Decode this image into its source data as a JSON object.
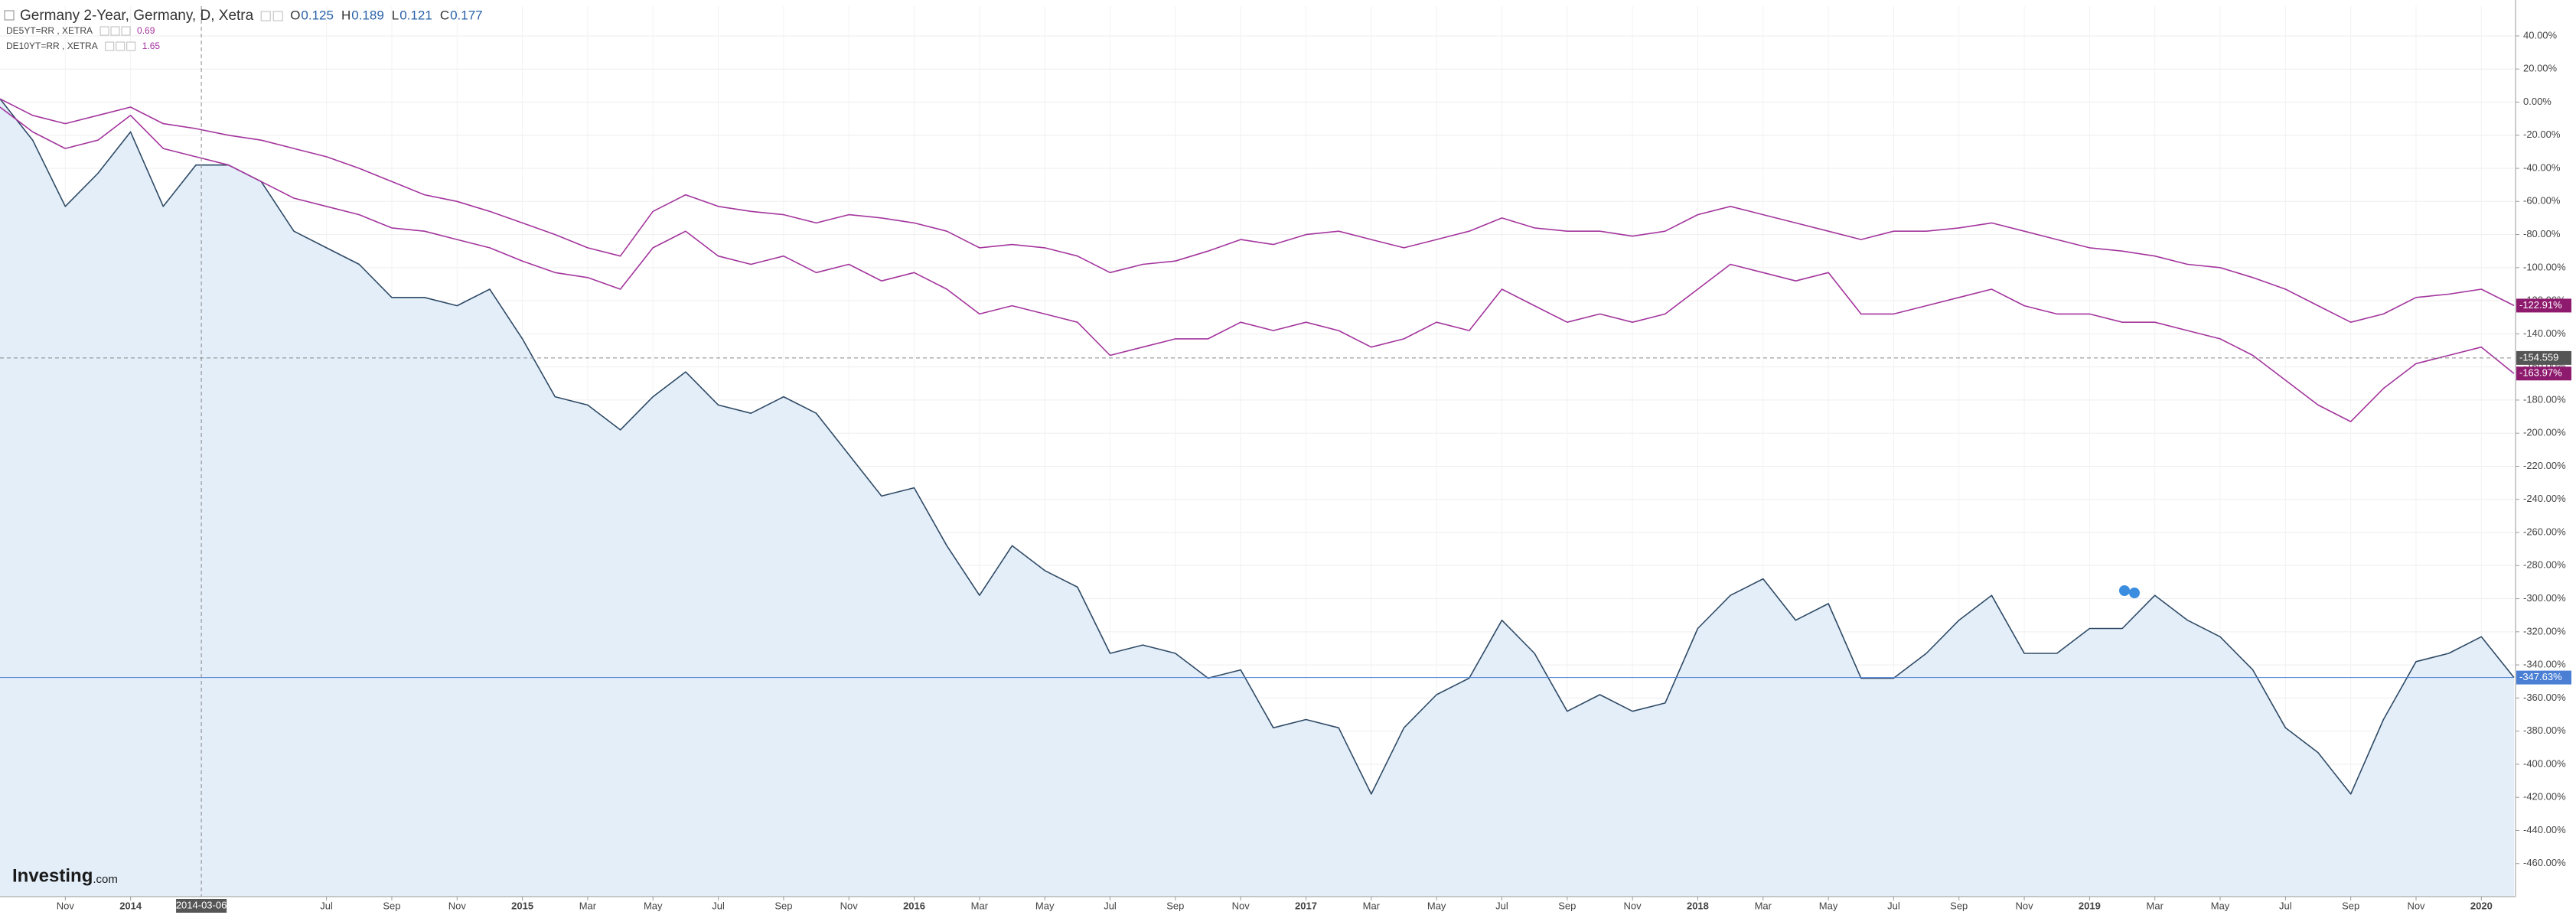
{
  "chart_data": {
    "type": "line",
    "xlim": [
      "2013-09",
      "2020-02"
    ],
    "ylim": [
      -480,
      58
    ],
    "grid": true,
    "x": [
      "2013-09",
      "2013-10",
      "2013-11",
      "2013-12",
      "2014-01",
      "2014-02",
      "2014-03",
      "2014-04",
      "2014-05",
      "2014-06",
      "2014-07",
      "2014-08",
      "2014-09",
      "2014-10",
      "2014-11",
      "2014-12",
      "2015-01",
      "2015-02",
      "2015-03",
      "2015-04",
      "2015-05",
      "2015-06",
      "2015-07",
      "2015-08",
      "2015-09",
      "2015-10",
      "2015-11",
      "2015-12",
      "2016-01",
      "2016-02",
      "2016-03",
      "2016-04",
      "2016-05",
      "2016-06",
      "2016-07",
      "2016-08",
      "2016-09",
      "2016-10",
      "2016-11",
      "2016-12",
      "2017-01",
      "2017-02",
      "2017-03",
      "2017-04",
      "2017-05",
      "2017-06",
      "2017-07",
      "2017-08",
      "2017-09",
      "2017-10",
      "2017-11",
      "2017-12",
      "2018-01",
      "2018-02",
      "2018-03",
      "2018-04",
      "2018-05",
      "2018-06",
      "2018-07",
      "2018-08",
      "2018-09",
      "2018-10",
      "2018-11",
      "2018-12",
      "2019-01",
      "2019-02",
      "2019-03",
      "2019-04",
      "2019-05",
      "2019-06",
      "2019-07",
      "2019-08",
      "2019-09",
      "2019-10",
      "2019-11",
      "2019-12",
      "2020-01",
      "2020-02"
    ],
    "series": [
      {
        "name": "Germany 2-Year, Germany, D, Xetra",
        "color": "#2f4a66",
        "fill": "#e3eef9",
        "last_label": "-347.63%",
        "tag_color": "#4a7fd4",
        "values": [
          2,
          -23,
          -63,
          -43,
          -18,
          -63,
          -38,
          -38,
          -48,
          -78,
          -88,
          -98,
          -118,
          -118,
          -123,
          -113,
          -143,
          -178,
          -183,
          -198,
          -178,
          -163,
          -183,
          -188,
          -178,
          -188,
          -213,
          -238,
          -233,
          -268,
          -298,
          -268,
          -283,
          -293,
          -333,
          -328,
          -333,
          -348,
          -343,
          -378,
          -373,
          -378,
          -418,
          -378,
          -358,
          -348,
          -313,
          -333,
          -368,
          -358,
          -368,
          -363,
          -318,
          -298,
          -288,
          -313,
          -303,
          -348,
          -348,
          -333,
          -313,
          -298,
          -333,
          -333,
          -318,
          -318,
          -298,
          -313,
          -323,
          -343,
          -378,
          -393,
          -418,
          -373,
          -338,
          -333,
          -323,
          -347.63
        ]
      },
      {
        "name": "DE5YT=RR , XETRA",
        "color": "#a3359d",
        "legend_value": 0.69,
        "last_label": "-163.97%",
        "tag_color": "#8e1a6e",
        "values": [
          -3,
          -18,
          -28,
          -23,
          -8,
          -28,
          -33,
          -38,
          -48,
          -58,
          -63,
          -68,
          -76,
          -78,
          -83,
          -88,
          -96,
          -103,
          -106,
          -113,
          -88,
          -78,
          -93,
          -98,
          -93,
          -103,
          -98,
          -108,
          -103,
          -113,
          -128,
          -123,
          -128,
          -133,
          -153,
          -148,
          -143,
          -143,
          -133,
          -138,
          -133,
          -138,
          -148,
          -143,
          -133,
          -138,
          -113,
          -123,
          -133,
          -128,
          -133,
          -128,
          -113,
          -98,
          -103,
          -108,
          -103,
          -128,
          -128,
          -123,
          -118,
          -113,
          -123,
          -128,
          -128,
          -133,
          -133,
          -138,
          -143,
          -153,
          -168,
          -183,
          -193,
          -173,
          -158,
          -153,
          -148,
          -163.97
        ]
      },
      {
        "name": "DE10YT=RR , XETRA",
        "color": "#a3359d",
        "legend_value": 1.65,
        "last_label": "-122.91%",
        "tag_color": "#8e1a6e",
        "values": [
          2,
          -8,
          -13,
          -8,
          -3,
          -13,
          -16,
          -20,
          -23,
          -28,
          -33,
          -40,
          -48,
          -56,
          -60,
          -66,
          -73,
          -80,
          -88,
          -93,
          -66,
          -56,
          -63,
          -66,
          -68,
          -73,
          -68,
          -70,
          -73,
          -78,
          -88,
          -86,
          -88,
          -93,
          -103,
          -98,
          -96,
          -90,
          -83,
          -86,
          -80,
          -78,
          -83,
          -88,
          -83,
          -78,
          -70,
          -76,
          -78,
          -78,
          -81,
          -78,
          -68,
          -63,
          -68,
          -73,
          -78,
          -83,
          -78,
          -78,
          -76,
          -73,
          -78,
          -83,
          -88,
          -90,
          -93,
          -98,
          -100,
          -106,
          -113,
          -123,
          -133,
          -128,
          -118,
          -116,
          -113,
          -122.91
        ]
      }
    ],
    "ohlc": [
      {
        "label": "O",
        "value": 0.125
      },
      {
        "label": "H",
        "value": 0.189
      },
      {
        "label": "L",
        "value": 0.121
      },
      {
        "label": "C",
        "value": 0.177
      }
    ],
    "crosshair": {
      "x": "2014-03-06",
      "y": -154.559
    },
    "xticks": [
      {
        "value": "2013-11",
        "label": "Nov"
      },
      {
        "value": "2014-01",
        "label": "2014"
      },
      {
        "value": "2014-07",
        "label": "Jul"
      },
      {
        "value": "2014-09",
        "label": "Sep"
      },
      {
        "value": "2014-11",
        "label": "Nov"
      },
      {
        "value": "2015-01",
        "label": "2015"
      },
      {
        "value": "2015-03",
        "label": "Mar"
      },
      {
        "value": "2015-05",
        "label": "May"
      },
      {
        "value": "2015-07",
        "label": "Jul"
      },
      {
        "value": "2015-09",
        "label": "Sep"
      },
      {
        "value": "2015-11",
        "label": "Nov"
      },
      {
        "value": "2016-01",
        "label": "2016"
      },
      {
        "value": "2016-03",
        "label": "Mar"
      },
      {
        "value": "2016-05",
        "label": "May"
      },
      {
        "value": "2016-07",
        "label": "Jul"
      },
      {
        "value": "2016-09",
        "label": "Sep"
      },
      {
        "value": "2016-11",
        "label": "Nov"
      },
      {
        "value": "2017-01",
        "label": "2017"
      },
      {
        "value": "2017-03",
        "label": "Mar"
      },
      {
        "value": "2017-05",
        "label": "May"
      },
      {
        "value": "2017-07",
        "label": "Jul"
      },
      {
        "value": "2017-09",
        "label": "Sep"
      },
      {
        "value": "2017-11",
        "label": "Nov"
      },
      {
        "value": "2018-01",
        "label": "2018"
      },
      {
        "value": "2018-03",
        "label": "Mar"
      },
      {
        "value": "2018-05",
        "label": "May"
      },
      {
        "value": "2018-07",
        "label": "Jul"
      },
      {
        "value": "2018-09",
        "label": "Sep"
      },
      {
        "value": "2018-11",
        "label": "Nov"
      },
      {
        "value": "2019-01",
        "label": "2019"
      },
      {
        "value": "2019-03",
        "label": "Mar"
      },
      {
        "value": "2019-05",
        "label": "May"
      },
      {
        "value": "2019-07",
        "label": "Jul"
      },
      {
        "value": "2019-09",
        "label": "Sep"
      },
      {
        "value": "2019-11",
        "label": "Nov"
      },
      {
        "value": "2020-01",
        "label": "2020"
      }
    ],
    "yticks": [
      {
        "value": 40,
        "label": "40.00%"
      },
      {
        "value": 20,
        "label": "20.00%"
      },
      {
        "value": 0,
        "label": "0.00%"
      },
      {
        "value": -20,
        "label": "-20.00%"
      },
      {
        "value": -40,
        "label": "-40.00%"
      },
      {
        "value": -60,
        "label": "-60.00%"
      },
      {
        "value": -80,
        "label": "-80.00%"
      },
      {
        "value": -100,
        "label": "-100.00%"
      },
      {
        "value": -120,
        "label": "-120.00%"
      },
      {
        "value": -140,
        "label": "-140.00%"
      },
      {
        "value": -160,
        "label": "-160.00%"
      },
      {
        "value": -180,
        "label": "-180.00%"
      },
      {
        "value": -200,
        "label": "-200.00%"
      },
      {
        "value": -220,
        "label": "-220.00%"
      },
      {
        "value": -240,
        "label": "-240.00%"
      },
      {
        "value": -260,
        "label": "-260.00%"
      },
      {
        "value": -280,
        "label": "-280.00%"
      },
      {
        "value": -300,
        "label": "-300.00%"
      },
      {
        "value": -320,
        "label": "-320.00%"
      },
      {
        "value": -340,
        "label": "-340.00%"
      },
      {
        "value": -360,
        "label": "-360.00%"
      },
      {
        "value": -380,
        "label": "-380.00%"
      },
      {
        "value": -400,
        "label": "-400.00%"
      },
      {
        "value": -420,
        "label": "-420.00%"
      },
      {
        "value": -440,
        "label": "-440.00%"
      },
      {
        "value": -460,
        "label": "-460.00%"
      }
    ]
  },
  "logo": {
    "main": "Investing",
    "suffix": ".com"
  }
}
